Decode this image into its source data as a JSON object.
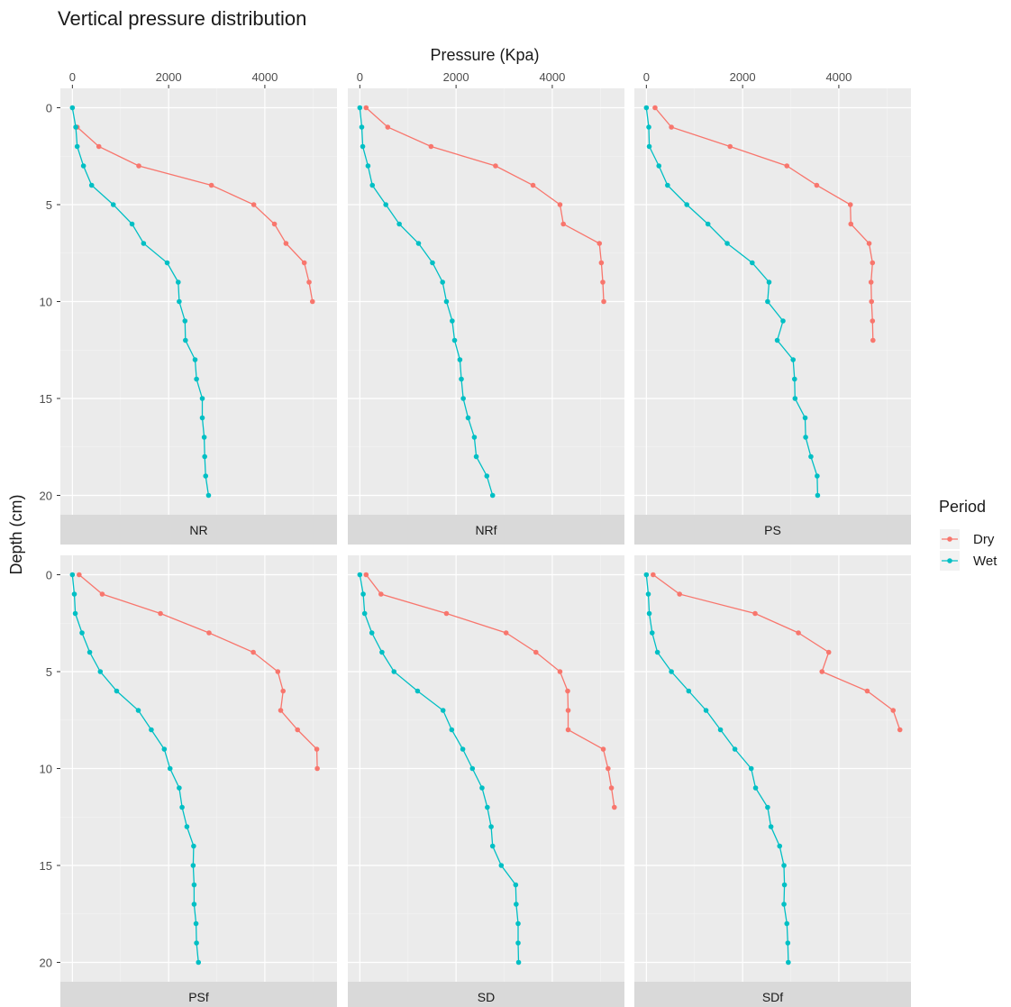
{
  "chart_data": {
    "type": "line",
    "title": "Vertical pressure distribution",
    "xlabel": "Pressure (Kpa)",
    "ylabel": "Depth (cm)",
    "xlim": [
      -250,
      5500
    ],
    "ylim": [
      -1,
      21
    ],
    "x_ticks": [
      0,
      2000,
      4000
    ],
    "y_ticks": [
      0,
      5,
      10,
      15,
      20
    ],
    "y_reversed": true,
    "grid": true,
    "legend": {
      "title": "Period",
      "position": "right",
      "entries": [
        {
          "name": "Dry",
          "color": "#F8766D"
        },
        {
          "name": "Wet",
          "color": "#00BFC4"
        }
      ]
    },
    "panels": [
      {
        "label": "NR",
        "series": [
          {
            "name": "Dry",
            "color": "#F8766D",
            "points": [
              [
                100,
                1
              ],
              [
                550,
                2
              ],
              [
                1380,
                3
              ],
              [
                2890,
                4
              ],
              [
                3770,
                5
              ],
              [
                4200,
                6
              ],
              [
                4440,
                7
              ],
              [
                4820,
                8
              ],
              [
                4920,
                9
              ],
              [
                4990,
                10
              ]
            ]
          },
          {
            "name": "Wet",
            "color": "#00BFC4",
            "points": [
              [
                0,
                0
              ],
              [
                70,
                1
              ],
              [
                100,
                2
              ],
              [
                230,
                3
              ],
              [
                400,
                4
              ],
              [
                850,
                5
              ],
              [
                1240,
                6
              ],
              [
                1480,
                7
              ],
              [
                1970,
                8
              ],
              [
                2200,
                9
              ],
              [
                2220,
                10
              ],
              [
                2340,
                11
              ],
              [
                2350,
                12
              ],
              [
                2550,
                13
              ],
              [
                2580,
                14
              ],
              [
                2700,
                15
              ],
              [
                2700,
                16
              ],
              [
                2740,
                17
              ],
              [
                2750,
                18
              ],
              [
                2770,
                19
              ],
              [
                2830,
                20
              ]
            ]
          }
        ]
      },
      {
        "label": "NRf",
        "series": [
          {
            "name": "Dry",
            "color": "#F8766D",
            "points": [
              [
                130,
                0
              ],
              [
                580,
                1
              ],
              [
                1480,
                2
              ],
              [
                2820,
                3
              ],
              [
                3600,
                4
              ],
              [
                4160,
                5
              ],
              [
                4230,
                6
              ],
              [
                4980,
                7
              ],
              [
                5020,
                8
              ],
              [
                5050,
                9
              ],
              [
                5070,
                10
              ]
            ]
          },
          {
            "name": "Wet",
            "color": "#00BFC4",
            "points": [
              [
                0,
                0
              ],
              [
                40,
                1
              ],
              [
                60,
                2
              ],
              [
                170,
                3
              ],
              [
                260,
                4
              ],
              [
                540,
                5
              ],
              [
                820,
                6
              ],
              [
                1220,
                7
              ],
              [
                1510,
                8
              ],
              [
                1720,
                9
              ],
              [
                1800,
                10
              ],
              [
                1920,
                11
              ],
              [
                1970,
                12
              ],
              [
                2080,
                13
              ],
              [
                2110,
                14
              ],
              [
                2150,
                15
              ],
              [
                2250,
                16
              ],
              [
                2380,
                17
              ],
              [
                2420,
                18
              ],
              [
                2640,
                19
              ],
              [
                2760,
                20
              ]
            ]
          }
        ]
      },
      {
        "label": "PS",
        "series": [
          {
            "name": "Dry",
            "color": "#F8766D",
            "points": [
              [
                180,
                0
              ],
              [
                520,
                1
              ],
              [
                1740,
                2
              ],
              [
                2920,
                3
              ],
              [
                3540,
                4
              ],
              [
                4240,
                5
              ],
              [
                4250,
                6
              ],
              [
                4630,
                7
              ],
              [
                4700,
                8
              ],
              [
                4670,
                9
              ],
              [
                4680,
                10
              ],
              [
                4700,
                11
              ],
              [
                4710,
                12
              ]
            ]
          },
          {
            "name": "Wet",
            "color": "#00BFC4",
            "points": [
              [
                0,
                0
              ],
              [
                50,
                1
              ],
              [
                60,
                2
              ],
              [
                260,
                3
              ],
              [
                440,
                4
              ],
              [
                840,
                5
              ],
              [
                1280,
                6
              ],
              [
                1680,
                7
              ],
              [
                2200,
                8
              ],
              [
                2550,
                9
              ],
              [
                2520,
                10
              ],
              [
                2840,
                11
              ],
              [
                2720,
                12
              ],
              [
                3050,
                13
              ],
              [
                3080,
                14
              ],
              [
                3090,
                15
              ],
              [
                3300,
                16
              ],
              [
                3310,
                17
              ],
              [
                3420,
                18
              ],
              [
                3550,
                19
              ],
              [
                3560,
                20
              ]
            ]
          }
        ]
      },
      {
        "label": "PSf",
        "series": [
          {
            "name": "Dry",
            "color": "#F8766D",
            "points": [
              [
                140,
                0
              ],
              [
                620,
                1
              ],
              [
                1830,
                2
              ],
              [
                2840,
                3
              ],
              [
                3760,
                4
              ],
              [
                4270,
                5
              ],
              [
                4380,
                6
              ],
              [
                4330,
                7
              ],
              [
                4680,
                8
              ],
              [
                5080,
                9
              ],
              [
                5090,
                10
              ]
            ]
          },
          {
            "name": "Wet",
            "color": "#00BFC4",
            "points": [
              [
                0,
                0
              ],
              [
                40,
                1
              ],
              [
                60,
                2
              ],
              [
                200,
                3
              ],
              [
                360,
                4
              ],
              [
                580,
                5
              ],
              [
                920,
                6
              ],
              [
                1370,
                7
              ],
              [
                1640,
                8
              ],
              [
                1910,
                9
              ],
              [
                2030,
                10
              ],
              [
                2220,
                11
              ],
              [
                2280,
                12
              ],
              [
                2380,
                13
              ],
              [
                2520,
                14
              ],
              [
                2510,
                15
              ],
              [
                2530,
                16
              ],
              [
                2530,
                17
              ],
              [
                2570,
                18
              ],
              [
                2580,
                19
              ],
              [
                2620,
                20
              ]
            ]
          }
        ]
      },
      {
        "label": "SD",
        "series": [
          {
            "name": "Dry",
            "color": "#F8766D",
            "points": [
              [
                130,
                0
              ],
              [
                440,
                1
              ],
              [
                1800,
                2
              ],
              [
                3040,
                3
              ],
              [
                3660,
                4
              ],
              [
                4160,
                5
              ],
              [
                4320,
                6
              ],
              [
                4330,
                7
              ],
              [
                4330,
                8
              ],
              [
                5060,
                9
              ],
              [
                5160,
                10
              ],
              [
                5230,
                11
              ],
              [
                5290,
                12
              ]
            ]
          },
          {
            "name": "Wet",
            "color": "#00BFC4",
            "points": [
              [
                0,
                0
              ],
              [
                70,
                1
              ],
              [
                100,
                2
              ],
              [
                250,
                3
              ],
              [
                460,
                4
              ],
              [
                710,
                5
              ],
              [
                1200,
                6
              ],
              [
                1730,
                7
              ],
              [
                1910,
                8
              ],
              [
                2140,
                9
              ],
              [
                2340,
                10
              ],
              [
                2540,
                11
              ],
              [
                2650,
                12
              ],
              [
                2730,
                13
              ],
              [
                2760,
                14
              ],
              [
                2940,
                15
              ],
              [
                3240,
                16
              ],
              [
                3250,
                17
              ],
              [
                3290,
                18
              ],
              [
                3290,
                19
              ],
              [
                3300,
                20
              ]
            ]
          }
        ]
      },
      {
        "label": "SDf",
        "series": [
          {
            "name": "Dry",
            "color": "#F8766D",
            "points": [
              [
                140,
                0
              ],
              [
                690,
                1
              ],
              [
                2260,
                2
              ],
              [
                3160,
                3
              ],
              [
                3790,
                4
              ],
              [
                3650,
                5
              ],
              [
                4590,
                6
              ],
              [
                5130,
                7
              ],
              [
                5270,
                8
              ]
            ]
          },
          {
            "name": "Wet",
            "color": "#00BFC4",
            "points": [
              [
                0,
                0
              ],
              [
                40,
                1
              ],
              [
                60,
                2
              ],
              [
                120,
                3
              ],
              [
                230,
                4
              ],
              [
                520,
                5
              ],
              [
                880,
                6
              ],
              [
                1240,
                7
              ],
              [
                1540,
                8
              ],
              [
                1840,
                9
              ],
              [
                2180,
                10
              ],
              [
                2270,
                11
              ],
              [
                2520,
                12
              ],
              [
                2590,
                13
              ],
              [
                2770,
                14
              ],
              [
                2860,
                15
              ],
              [
                2870,
                16
              ],
              [
                2860,
                17
              ],
              [
                2920,
                18
              ],
              [
                2940,
                19
              ],
              [
                2950,
                20
              ]
            ]
          }
        ]
      }
    ]
  }
}
